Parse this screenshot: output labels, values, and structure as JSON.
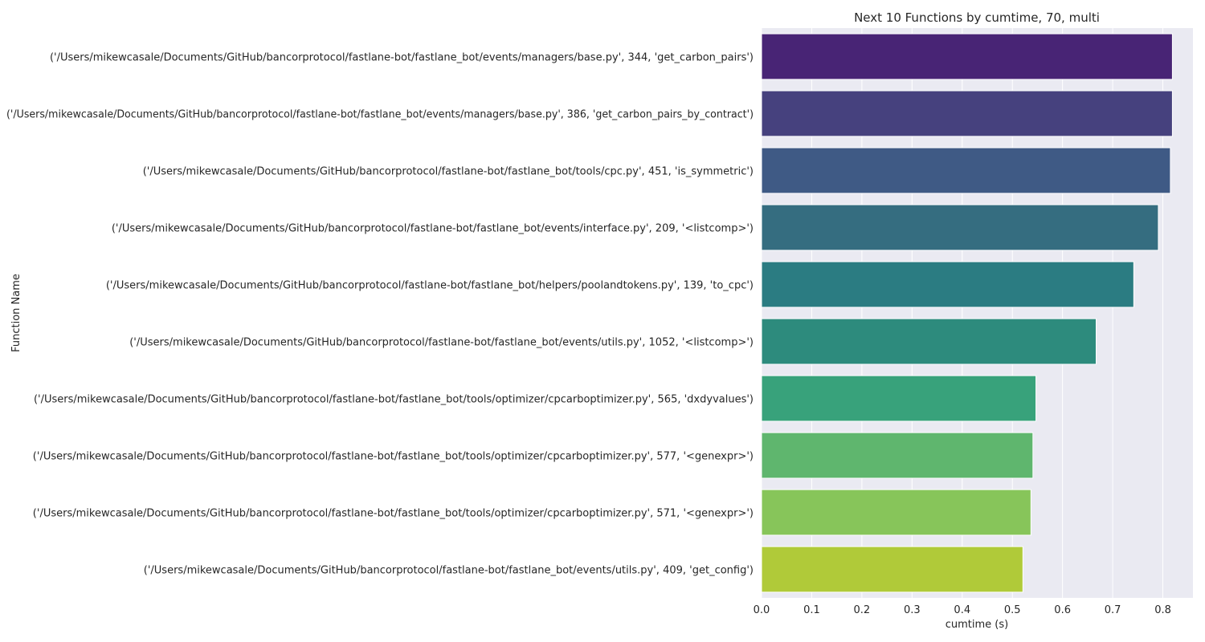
{
  "chart_data": {
    "type": "bar",
    "orientation": "horizontal",
    "title": "Next 10 Functions by cumtime, 70, multi",
    "xlabel": "cumtime (s)",
    "ylabel": "Function Name",
    "xlim": [
      0,
      0.86
    ],
    "xticks": [
      0.0,
      0.1,
      0.2,
      0.3,
      0.4,
      0.5,
      0.6,
      0.7,
      0.8
    ],
    "xtick_labels": [
      "0.0",
      "0.1",
      "0.2",
      "0.3",
      "0.4",
      "0.5",
      "0.6",
      "0.7",
      "0.8"
    ],
    "grid": true,
    "categories": [
      "('/Users/mikewcasale/Documents/GitHub/bancorprotocol/fastlane-bot/fastlane_bot/events/managers/base.py', 344, 'get_carbon_pairs')",
      "('/Users/mikewcasale/Documents/GitHub/bancorprotocol/fastlane-bot/fastlane_bot/events/managers/base.py', 386, 'get_carbon_pairs_by_contract')",
      "('/Users/mikewcasale/Documents/GitHub/bancorprotocol/fastlane-bot/fastlane_bot/tools/cpc.py', 451, 'is_symmetric')",
      "('/Users/mikewcasale/Documents/GitHub/bancorprotocol/fastlane-bot/fastlane_bot/events/interface.py', 209, '<listcomp>')",
      "('/Users/mikewcasale/Documents/GitHub/bancorprotocol/fastlane-bot/fastlane_bot/helpers/poolandtokens.py', 139, 'to_cpc')",
      "('/Users/mikewcasale/Documents/GitHub/bancorprotocol/fastlane-bot/fastlane_bot/events/utils.py', 1052, '<listcomp>')",
      "('/Users/mikewcasale/Documents/GitHub/bancorprotocol/fastlane-bot/fastlane_bot/tools/optimizer/cpcarboptimizer.py', 565, 'dxdyvalues')",
      "('/Users/mikewcasale/Documents/GitHub/bancorprotocol/fastlane-bot/fastlane_bot/tools/optimizer/cpcarboptimizer.py', 577, '<genexpr>')",
      "('/Users/mikewcasale/Documents/GitHub/bancorprotocol/fastlane-bot/fastlane_bot/tools/optimizer/cpcarboptimizer.py', 571, '<genexpr>')",
      "('/Users/mikewcasale/Documents/GitHub/bancorprotocol/fastlane-bot/fastlane_bot/events/utils.py', 409, 'get_config')"
    ],
    "values": [
      0.819,
      0.819,
      0.815,
      0.791,
      0.742,
      0.667,
      0.547,
      0.541,
      0.537,
      0.521
    ],
    "colors": [
      "#482475",
      "#46417e",
      "#3f5a85",
      "#356d80",
      "#2b7c82",
      "#2d8b7d",
      "#38a27b",
      "#5fb66e",
      "#87c55a",
      "#b0ca39"
    ],
    "plot_background": "#eaeaf2",
    "grid_color": "#ffffff"
  }
}
